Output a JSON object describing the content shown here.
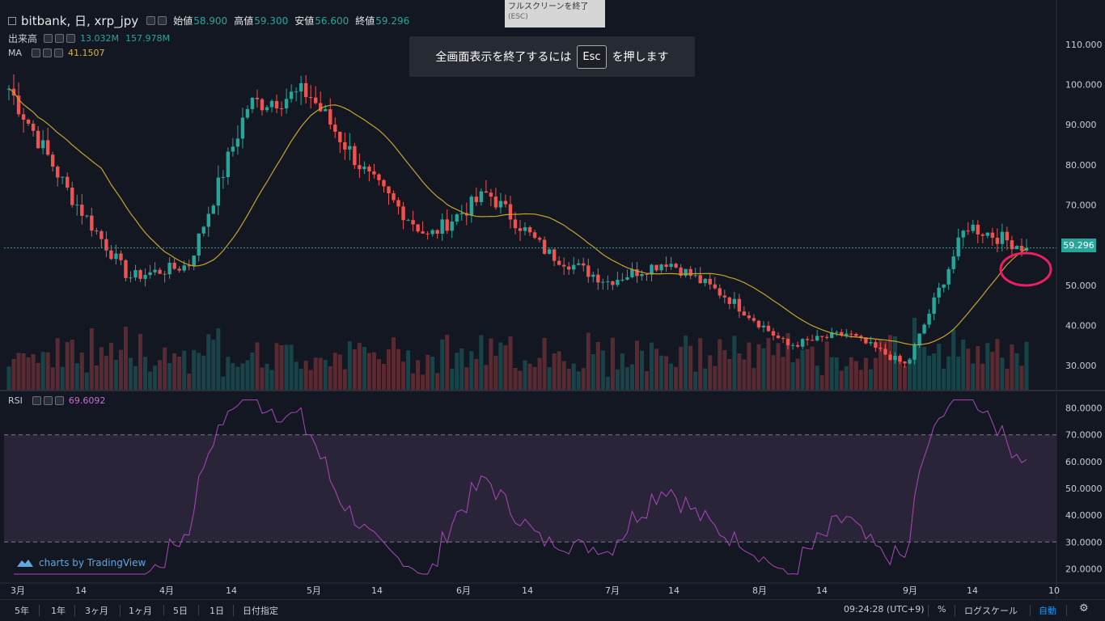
{
  "header": {
    "symbol": "bitbank, 日, xrp_jpy",
    "open_label": "始値",
    "open": "58.900",
    "high_label": "高値",
    "high": "59.300",
    "low_label": "安値",
    "low": "56.600",
    "close_label": "終値",
    "close": "59.296"
  },
  "volume_legend": {
    "label": "出来高",
    "value1": "13.032M",
    "value2": "157.978M"
  },
  "ma_legend": {
    "label": "MA",
    "value": "41.1507"
  },
  "rsi_legend": {
    "label": "RSI",
    "value": "69.6092"
  },
  "esc_tooltip": {
    "line1": "フルスクリーンを終了",
    "line2": "(ESC)"
  },
  "fullscreen_banner": {
    "before": "全画面表示を終了するには",
    "key": "Esc",
    "after": "を押します"
  },
  "attribution": "charts by TradingView",
  "price_axis": [
    "110.000",
    "100.000",
    "90.000",
    "80.000",
    "70.000",
    "60.000",
    "50.000",
    "40.000",
    "30.000"
  ],
  "current_price": "59.296",
  "rsi_axis": [
    "80.0000",
    "70.0000",
    "60.0000",
    "50.0000",
    "40.0000",
    "30.0000",
    "20.0000"
  ],
  "time_axis": [
    "3月",
    "14",
    "4月",
    "14",
    "5月",
    "14",
    "6月",
    "14",
    "7月",
    "14",
    "8月",
    "14",
    "9月",
    "14",
    "10"
  ],
  "bottom_bar": {
    "ranges": [
      "5年",
      "1年",
      "3ヶ月",
      "1ヶ月",
      "5日",
      "1日"
    ],
    "goto_date": "日付指定",
    "clock": "09:24:28 (UTC+9)",
    "percent": "%",
    "log_scale": "ログスケール",
    "auto": "自動"
  },
  "colors": {
    "background": "#131722",
    "up": "#26a69a",
    "down": "#ef5350",
    "ma": "#c9a227",
    "rsi": "#ab47bc",
    "rsi_band": "#2a2438",
    "annotation": "#e91e63"
  },
  "chart_data": {
    "type": "candlestick",
    "timeframe": "日",
    "price_range": [
      24,
      117
    ],
    "rsi_range": [
      15,
      85
    ],
    "rsi_levels": [
      70,
      30
    ],
    "ma_value_last": 41.1507,
    "candles_keypoints": [
      {
        "x": "3月",
        "close": 99
      },
      {
        "x": "3月中旬",
        "close": 73
      },
      {
        "x": "4月初",
        "close": 52
      },
      {
        "x": "4月中旬",
        "close": 55
      },
      {
        "x": "4月下旬",
        "close": 95
      },
      {
        "x": "5月初",
        "close": 98
      },
      {
        "x": "5月中旬",
        "close": 77
      },
      {
        "x": "6月初",
        "close": 62
      },
      {
        "x": "6月中旬",
        "close": 73
      },
      {
        "x": "6月下旬",
        "close": 58
      },
      {
        "x": "7月",
        "close": 51
      },
      {
        "x": "7月中旬",
        "close": 56
      },
      {
        "x": "8月",
        "close": 47
      },
      {
        "x": "8月中旬",
        "close": 35
      },
      {
        "x": "9月",
        "close": 38
      },
      {
        "x": "9月中旬",
        "close": 30
      },
      {
        "x": "9月下旬",
        "close": 65
      },
      {
        "x": "最新",
        "close": 59.296
      }
    ]
  }
}
